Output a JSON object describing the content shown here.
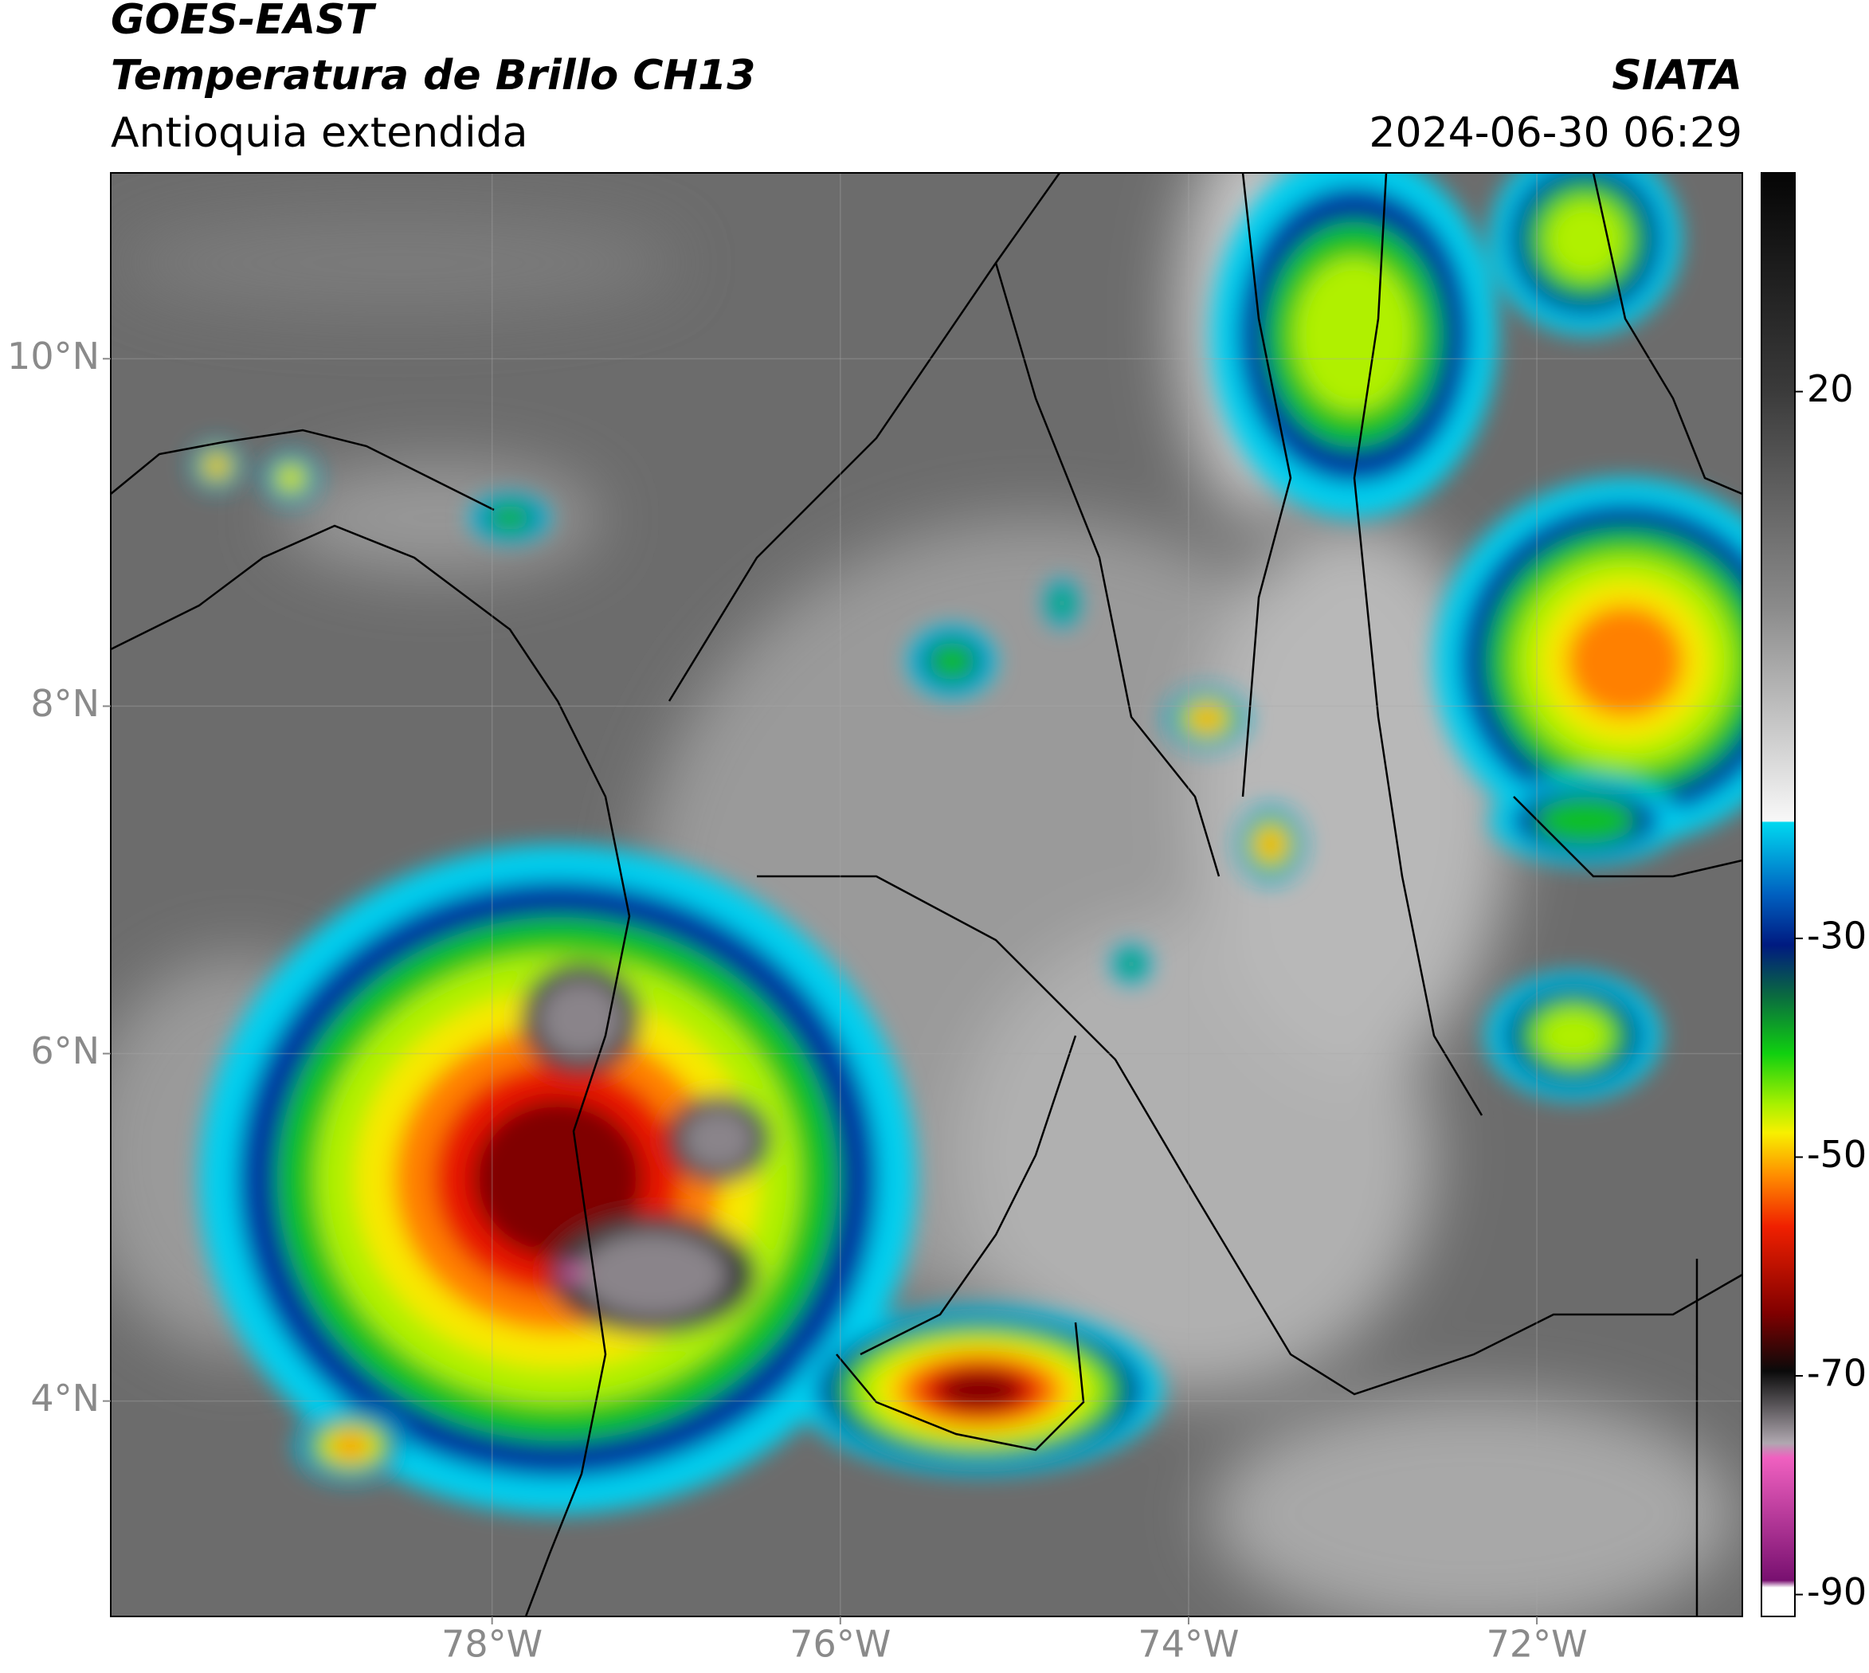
{
  "header": {
    "title": "GOES-EAST",
    "subtitle": "Temperatura de Brillo CH13",
    "region": "Antioquia extendida",
    "source": "SIATA",
    "datetime": "2024-06-30 06:29"
  },
  "map": {
    "lonlim": [
      -80.19,
      -70.82
    ],
    "latlim": [
      2.76,
      11.07
    ],
    "lonticks": [
      {
        "value": -78,
        "label": "78°W"
      },
      {
        "value": -76,
        "label": "76°W"
      },
      {
        "value": -74,
        "label": "74°W"
      },
      {
        "value": -72,
        "label": "72°W"
      }
    ],
    "latticks": [
      {
        "value": 4,
        "label": "4°N"
      },
      {
        "value": 6,
        "label": "6°N"
      },
      {
        "value": 8,
        "label": "8°N"
      },
      {
        "value": 10,
        "label": "10°N"
      }
    ]
  },
  "colorbar": {
    "lim": [
      -92,
      40
    ],
    "ticks": [
      20,
      -30,
      -50,
      -70,
      -90
    ]
  }
}
